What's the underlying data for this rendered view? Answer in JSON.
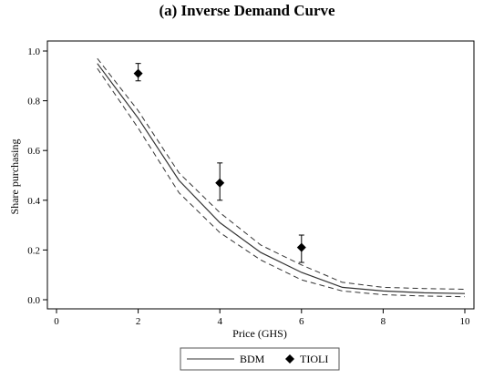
{
  "chart_data": {
    "type": "line",
    "title": "(a) Inverse Demand Curve",
    "xlabel": "Price (GHS)",
    "ylabel": "Share purchasing",
    "xlim": [
      0,
      10
    ],
    "ylim": [
      0,
      1
    ],
    "x_ticks": [
      0,
      2,
      4,
      6,
      8,
      10
    ],
    "y_ticks": [
      0,
      0.2,
      0.4,
      0.6,
      0.8,
      1
    ],
    "x_tick_labels": [
      "0",
      "2",
      "4",
      "6",
      "8",
      "10"
    ],
    "y_tick_labels": [
      "0.0",
      "0.2",
      "0.4",
      "0.6",
      "0.8",
      "1.0"
    ],
    "grid": false,
    "legend_placement": "bottom",
    "series": [
      {
        "name": "BDM",
        "kind": "line",
        "color": "#333333",
        "x": [
          1,
          2,
          3,
          4,
          5,
          6,
          7,
          8,
          9,
          10
        ],
        "y": [
          0.95,
          0.73,
          0.48,
          0.31,
          0.19,
          0.11,
          0.05,
          0.035,
          0.028,
          0.025
        ],
        "ci_lower": [
          0.93,
          0.69,
          0.43,
          0.27,
          0.16,
          0.08,
          0.035,
          0.02,
          0.015,
          0.012
        ],
        "ci_upper": [
          0.97,
          0.76,
          0.51,
          0.35,
          0.22,
          0.14,
          0.07,
          0.05,
          0.045,
          0.042
        ]
      },
      {
        "name": "TIOLI",
        "kind": "point",
        "marker": "diamond",
        "color": "#000000",
        "x": [
          2,
          4,
          6
        ],
        "y": [
          0.91,
          0.47,
          0.21
        ],
        "err_lower": [
          0.88,
          0.4,
          0.15
        ],
        "err_upper": [
          0.95,
          0.55,
          0.26
        ]
      }
    ]
  }
}
